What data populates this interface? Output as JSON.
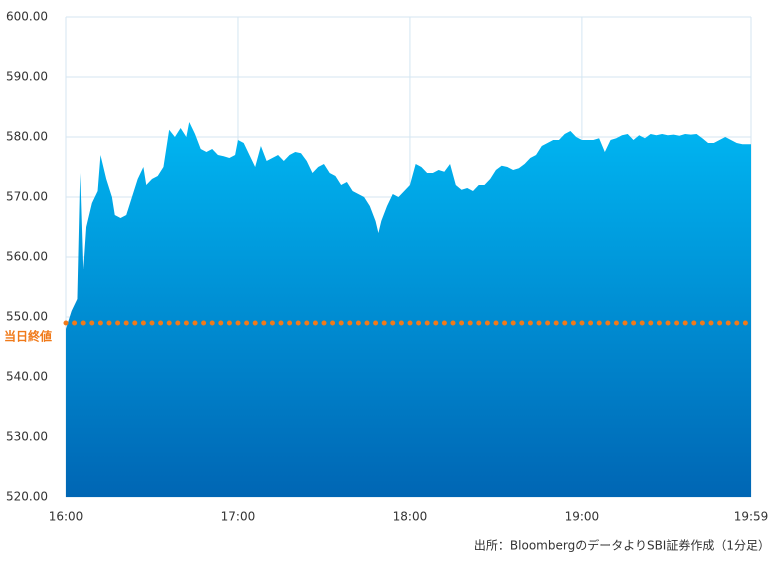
{
  "chart_data": {
    "type": "area",
    "x": [
      "16:00",
      "16:02",
      "16:04",
      "16:05",
      "16:06",
      "16:07",
      "16:09",
      "16:11",
      "16:12",
      "16:14",
      "16:16",
      "16:17",
      "16:19",
      "16:21",
      "16:23",
      "16:25",
      "16:27",
      "16:28",
      "16:30",
      "16:32",
      "16:34",
      "16:36",
      "16:38",
      "16:40",
      "16:42",
      "16:43",
      "16:45",
      "16:47",
      "16:49",
      "16:51",
      "16:53",
      "16:55",
      "16:57",
      "16:59",
      "17:00",
      "17:02",
      "17:04",
      "17:06",
      "17:08",
      "17:10",
      "17:12",
      "17:14",
      "17:16",
      "17:18",
      "17:20",
      "17:22",
      "17:24",
      "17:26",
      "17:28",
      "17:30",
      "17:32",
      "17:34",
      "17:36",
      "17:38",
      "17:40",
      "17:42",
      "17:44",
      "17:46",
      "17:48",
      "17:49",
      "17:50",
      "17:52",
      "17:54",
      "17:56",
      "17:58",
      "18:00",
      "18:02",
      "18:04",
      "18:06",
      "18:08",
      "18:10",
      "18:12",
      "18:14",
      "18:16",
      "18:18",
      "18:20",
      "18:22",
      "18:24",
      "18:26",
      "18:28",
      "18:30",
      "18:32",
      "18:34",
      "18:36",
      "18:38",
      "18:40",
      "18:42",
      "18:44",
      "18:46",
      "18:48",
      "18:50",
      "18:52",
      "18:54",
      "18:56",
      "18:58",
      "19:00",
      "19:02",
      "19:04",
      "19:06",
      "19:08",
      "19:10",
      "19:12",
      "19:14",
      "19:16",
      "19:18",
      "19:20",
      "19:22",
      "19:24",
      "19:26",
      "19:28",
      "19:30",
      "19:32",
      "19:34",
      "19:36",
      "19:38",
      "19:40",
      "19:42",
      "19:44",
      "19:46",
      "19:48",
      "19:50",
      "19:52",
      "19:54",
      "19:56",
      "19:59"
    ],
    "values": [
      548,
      551,
      553,
      574,
      558,
      565,
      569,
      571,
      577,
      573,
      570,
      567,
      566.5,
      567,
      570,
      573,
      575,
      572,
      573,
      573.5,
      575,
      581.2,
      580,
      581.5,
      580,
      582.5,
      580.5,
      578,
      577.5,
      578,
      577,
      576.8,
      576.5,
      577,
      579.5,
      579,
      577,
      575,
      578.5,
      576,
      576.5,
      577,
      576,
      577,
      577.5,
      577.3,
      576,
      574,
      575,
      575.5,
      574,
      573.5,
      572,
      572.5,
      571,
      570.5,
      570,
      568.5,
      566,
      564,
      566,
      568.5,
      570.5,
      570,
      571,
      572,
      575.5,
      575,
      574,
      574,
      574.5,
      574.2,
      575.5,
      572,
      571.2,
      571.5,
      571,
      572,
      572,
      573,
      574.5,
      575.2,
      575,
      574.5,
      574.8,
      575.5,
      576.5,
      577,
      578.5,
      579,
      579.5,
      579.5,
      580.5,
      581,
      580,
      579.5,
      579.5,
      579.5,
      579.8,
      577.5,
      579.5,
      579.8,
      580.3,
      580.5,
      579.5,
      580.3,
      579.8,
      580.5,
      580.3,
      580.5,
      580.3,
      580.4,
      580.2,
      580.5,
      580.4,
      580.5,
      579.8,
      579,
      579,
      579.5,
      580,
      579.5,
      579,
      578.8,
      578.8
    ],
    "gradient": [
      "#00b6f2",
      "#0066b4"
    ],
    "xlim": [
      "16:00",
      "19:59"
    ],
    "xticks": [
      "16:00",
      "17:00",
      "18:00",
      "19:00",
      "19:59"
    ],
    "ylim": [
      520,
      600
    ],
    "yticks": [
      {
        "value": 520,
        "label": "520.00"
      },
      {
        "value": 530,
        "label": "530.00"
      },
      {
        "value": 540,
        "label": "540.00"
      },
      {
        "value": 550,
        "label": "550.00"
      },
      {
        "value": 560,
        "label": "560.00"
      },
      {
        "value": 570,
        "label": "570.00"
      },
      {
        "value": 580,
        "label": "580.00"
      },
      {
        "value": 590,
        "label": "590.00"
      },
      {
        "value": 600,
        "label": "600.00"
      }
    ],
    "grid": true,
    "reference_line": {
      "label": "当日終値",
      "value": 549,
      "color": "#f07a1a"
    },
    "source": "出所：BloombergのデータよりSBI証券作成（1分足）"
  }
}
